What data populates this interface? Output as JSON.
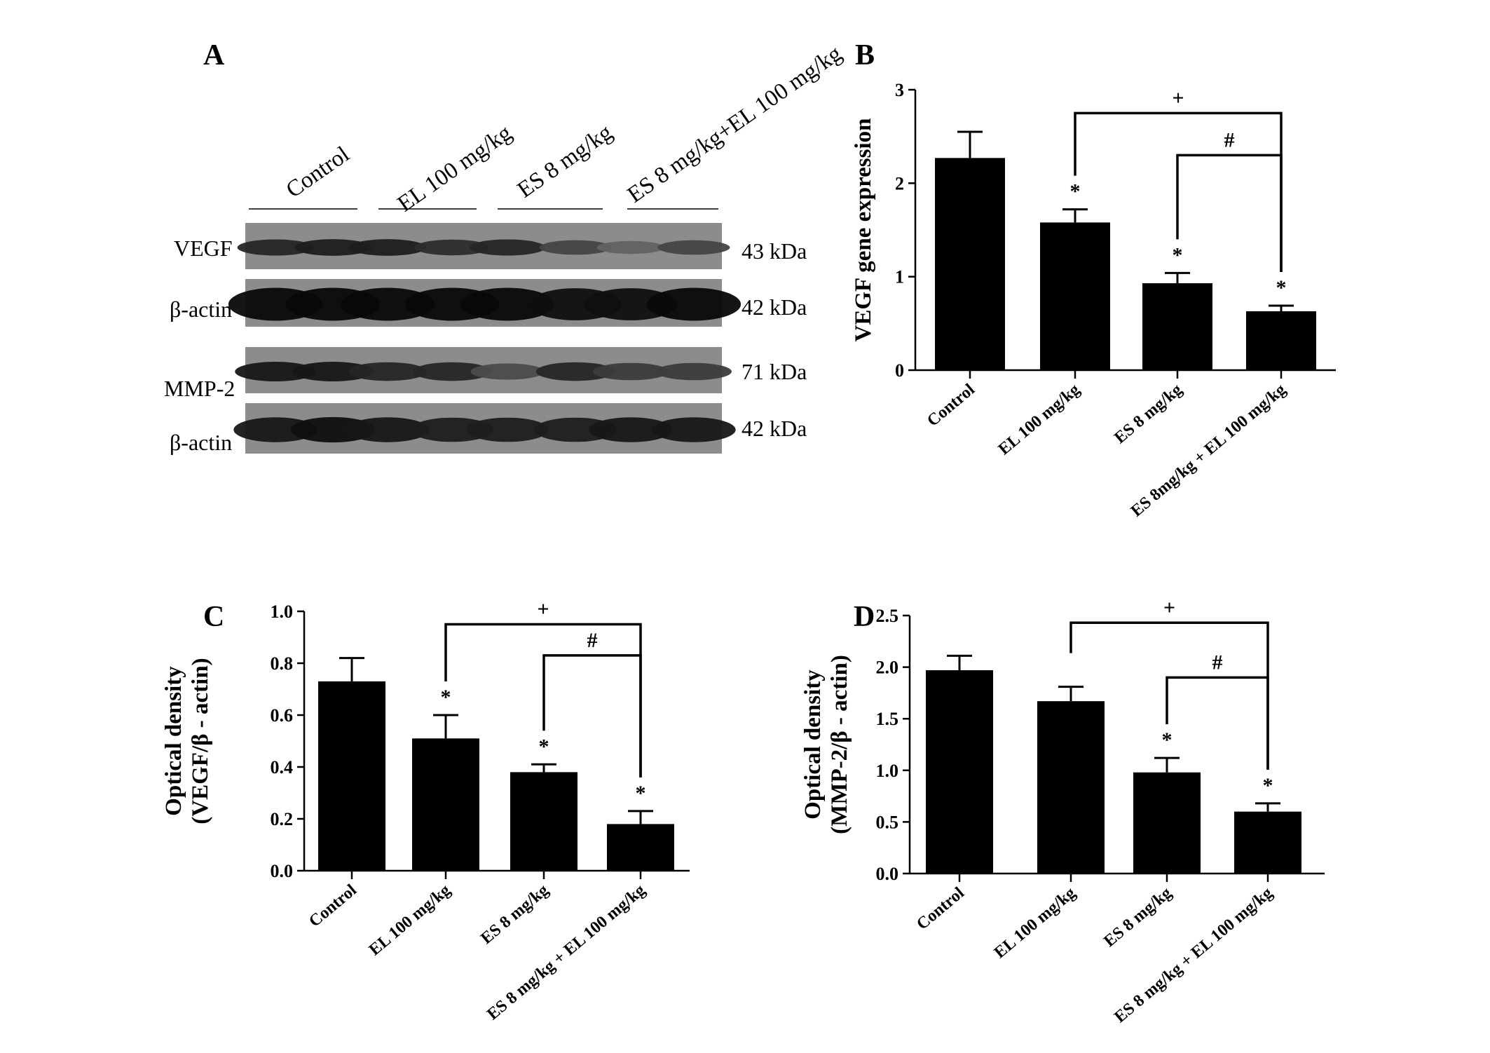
{
  "panel_letters": {
    "a": "A",
    "b": "B",
    "c": "C",
    "d": "D"
  },
  "western_blot": {
    "lane_groups": [
      "Control",
      "EL 100 mg/kg",
      "ES 8 mg/kg",
      "ES 8 mg/kg+EL 100 mg/kg"
    ],
    "rows": [
      {
        "label": "VEGF",
        "kda": "43 kDa",
        "intensity": [
          0.75,
          0.8,
          0.8,
          0.7,
          0.75,
          0.55,
          0.35,
          0.55
        ]
      },
      {
        "label": "β-actin",
        "kda": "42 kDa",
        "intensity": [
          0.95,
          0.95,
          0.95,
          0.95,
          0.95,
          0.9,
          0.9,
          0.95
        ]
      },
      {
        "label": "MMP-2",
        "kda": "71 kDa",
        "intensity": [
          0.85,
          0.85,
          0.75,
          0.75,
          0.5,
          0.75,
          0.6,
          0.6
        ]
      },
      {
        "label": "β-actin",
        "kda": "42 kDa",
        "intensity": [
          0.85,
          0.9,
          0.85,
          0.8,
          0.8,
          0.8,
          0.85,
          0.85
        ]
      }
    ]
  },
  "chart_data": [
    {
      "id": "B",
      "type": "bar",
      "categories": [
        "Control",
        "EL 100 mg/kg",
        "ES 8 mg/kg",
        "ES  8mg/kg + EL 100 mg/kg"
      ],
      "values": [
        2.27,
        1.58,
        0.93,
        0.63
      ],
      "errors": [
        0.28,
        0.14,
        0.11,
        0.06
      ],
      "stars": [
        "",
        "*",
        "*",
        "*"
      ],
      "ylabel": "VEGF gene expression",
      "xlabel": "",
      "ylim": [
        0,
        3
      ],
      "yticks": [
        "0",
        "1",
        "2",
        "3"
      ],
      "brackets": [
        {
          "symbol": "+",
          "from": 1,
          "to": 3,
          "level": 2.75
        },
        {
          "symbol": "#",
          "from": 2,
          "to": 3,
          "level": 2.3
        }
      ],
      "bar_color": "#000000"
    },
    {
      "id": "C",
      "type": "bar",
      "categories": [
        "Control",
        "EL 100 mg/kg",
        "ES 8 mg/kg",
        "ES 8 mg/kg + EL 100 mg/kg"
      ],
      "values": [
        0.73,
        0.51,
        0.38,
        0.18
      ],
      "errors": [
        0.09,
        0.09,
        0.03,
        0.05
      ],
      "stars": [
        "",
        "*",
        "*",
        "*"
      ],
      "ylabel": "Optical density",
      "ylabel2": "(VEGF/β - actin)",
      "xlabel": "",
      "ylim": [
        0,
        1.0
      ],
      "yticks": [
        "0.0",
        "0.2",
        "0.4",
        "0.6",
        "0.8",
        "1.0"
      ],
      "brackets": [
        {
          "symbol": "+",
          "from": 1,
          "to": 3,
          "level": 0.95
        },
        {
          "symbol": "#",
          "from": 2,
          "to": 3,
          "level": 0.83
        }
      ],
      "bar_color": "#000000"
    },
    {
      "id": "D",
      "type": "bar",
      "categories": [
        "Control",
        "EL 100 mg/kg",
        "ES 8 mg/kg",
        "ES 8 mg/kg + EL 100 mg/kg"
      ],
      "values": [
        1.97,
        1.67,
        0.98,
        0.6
      ],
      "errors": [
        0.14,
        0.14,
        0.14,
        0.08
      ],
      "stars": [
        "",
        "",
        "*",
        "*"
      ],
      "ylabel": "Optical density",
      "ylabel2": "(MMP-2/β - actin)",
      "xlabel": "",
      "ylim": [
        0,
        2.5
      ],
      "yticks": [
        "0.0",
        "0.5",
        "1.0",
        "1.5",
        "2.0",
        "2.5"
      ],
      "brackets": [
        {
          "symbol": "+",
          "from": 1,
          "to": 3,
          "level": 2.43
        },
        {
          "symbol": "#",
          "from": 2,
          "to": 3,
          "level": 1.9
        }
      ],
      "bar_color": "#000000"
    }
  ]
}
